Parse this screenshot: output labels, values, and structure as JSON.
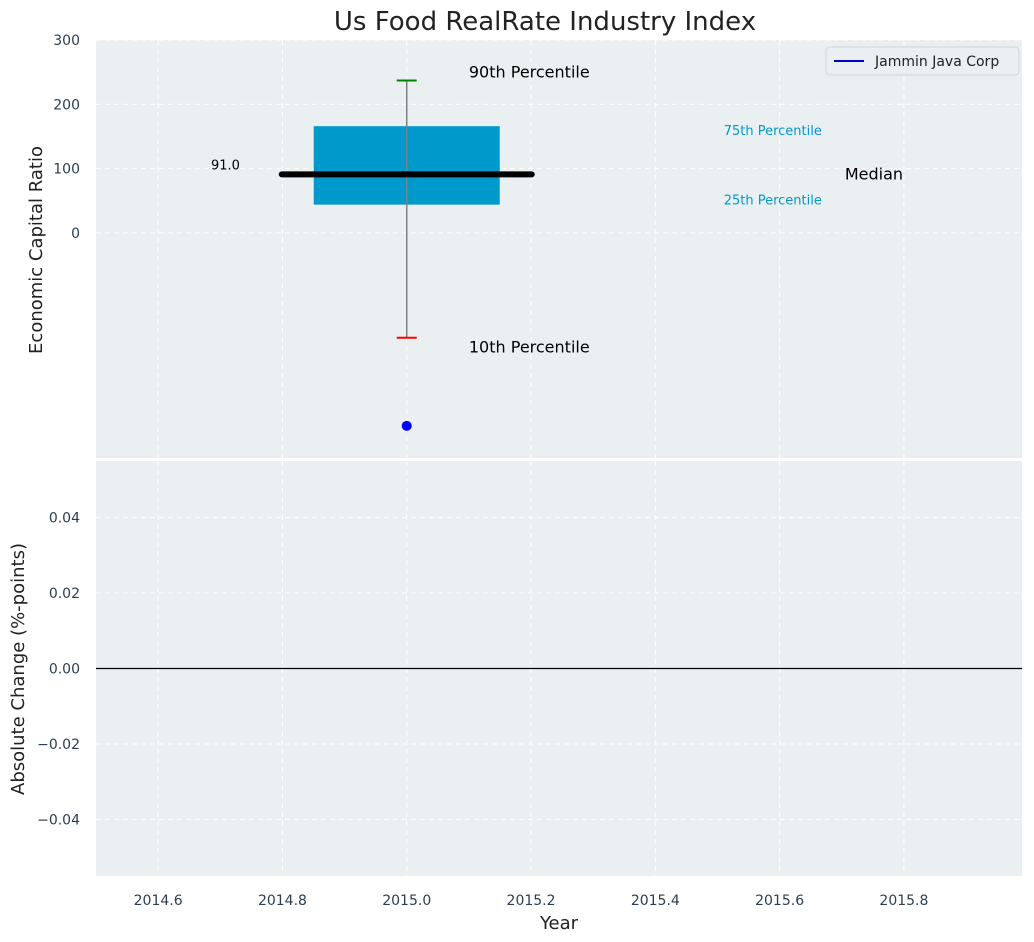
{
  "chart_data": {
    "type": "box",
    "title": "Us Food RealRate Industry Index",
    "colors": {
      "box": "#0099cc",
      "median": "#000000",
      "p90": "#008000",
      "p10": "#ff0000",
      "company": "#0000ff",
      "axes_bg": "#eaeff1",
      "pct_label": "#0099cc"
    },
    "top_panel": {
      "ylabel": "Economic Capital Ratio",
      "ylim": [
        -350,
        300
      ],
      "yticks": [
        {
          "value": 300,
          "label": "300"
        },
        {
          "value": 200,
          "label": "200"
        },
        {
          "value": 100,
          "label": "100"
        },
        {
          "value": 0,
          "label": "0"
        }
      ],
      "year": 2015,
      "p90": 237,
      "p75": 166,
      "median": 91,
      "p25": 44,
      "p10": -163,
      "company_value": -300,
      "median_label": "91.0",
      "annotations": {
        "p90": "90th Percentile",
        "p75": "75th Percentile",
        "median": "Median",
        "p25": "25th Percentile",
        "p10": "10th Percentile"
      },
      "legend": {
        "position": "top-right",
        "entries": [
          "Jammin Java Corp"
        ]
      }
    },
    "bottom_panel": {
      "ylabel": "Absolute Change (%-points)",
      "xlabel": "Year",
      "ylim": [
        -0.055,
        0.055
      ],
      "yticks": [
        {
          "value": 0.04,
          "label": "0.04"
        },
        {
          "value": 0.02,
          "label": "0.02"
        },
        {
          "value": 0.0,
          "label": "0.00"
        },
        {
          "value": -0.02,
          "label": "−0.02"
        },
        {
          "value": -0.04,
          "label": "−0.04"
        }
      ],
      "xlim": [
        2014.5,
        2015.99
      ],
      "xticks": [
        {
          "value": 2014.6,
          "label": "2014.6"
        },
        {
          "value": 2014.8,
          "label": "2014.8"
        },
        {
          "value": 2015.0,
          "label": "2015.0"
        },
        {
          "value": 2015.2,
          "label": "2015.2"
        },
        {
          "value": 2015.4,
          "label": "2015.4"
        },
        {
          "value": 2015.6,
          "label": "2015.6"
        },
        {
          "value": 2015.8,
          "label": "2015.8"
        }
      ],
      "zero_line": 0
    }
  }
}
